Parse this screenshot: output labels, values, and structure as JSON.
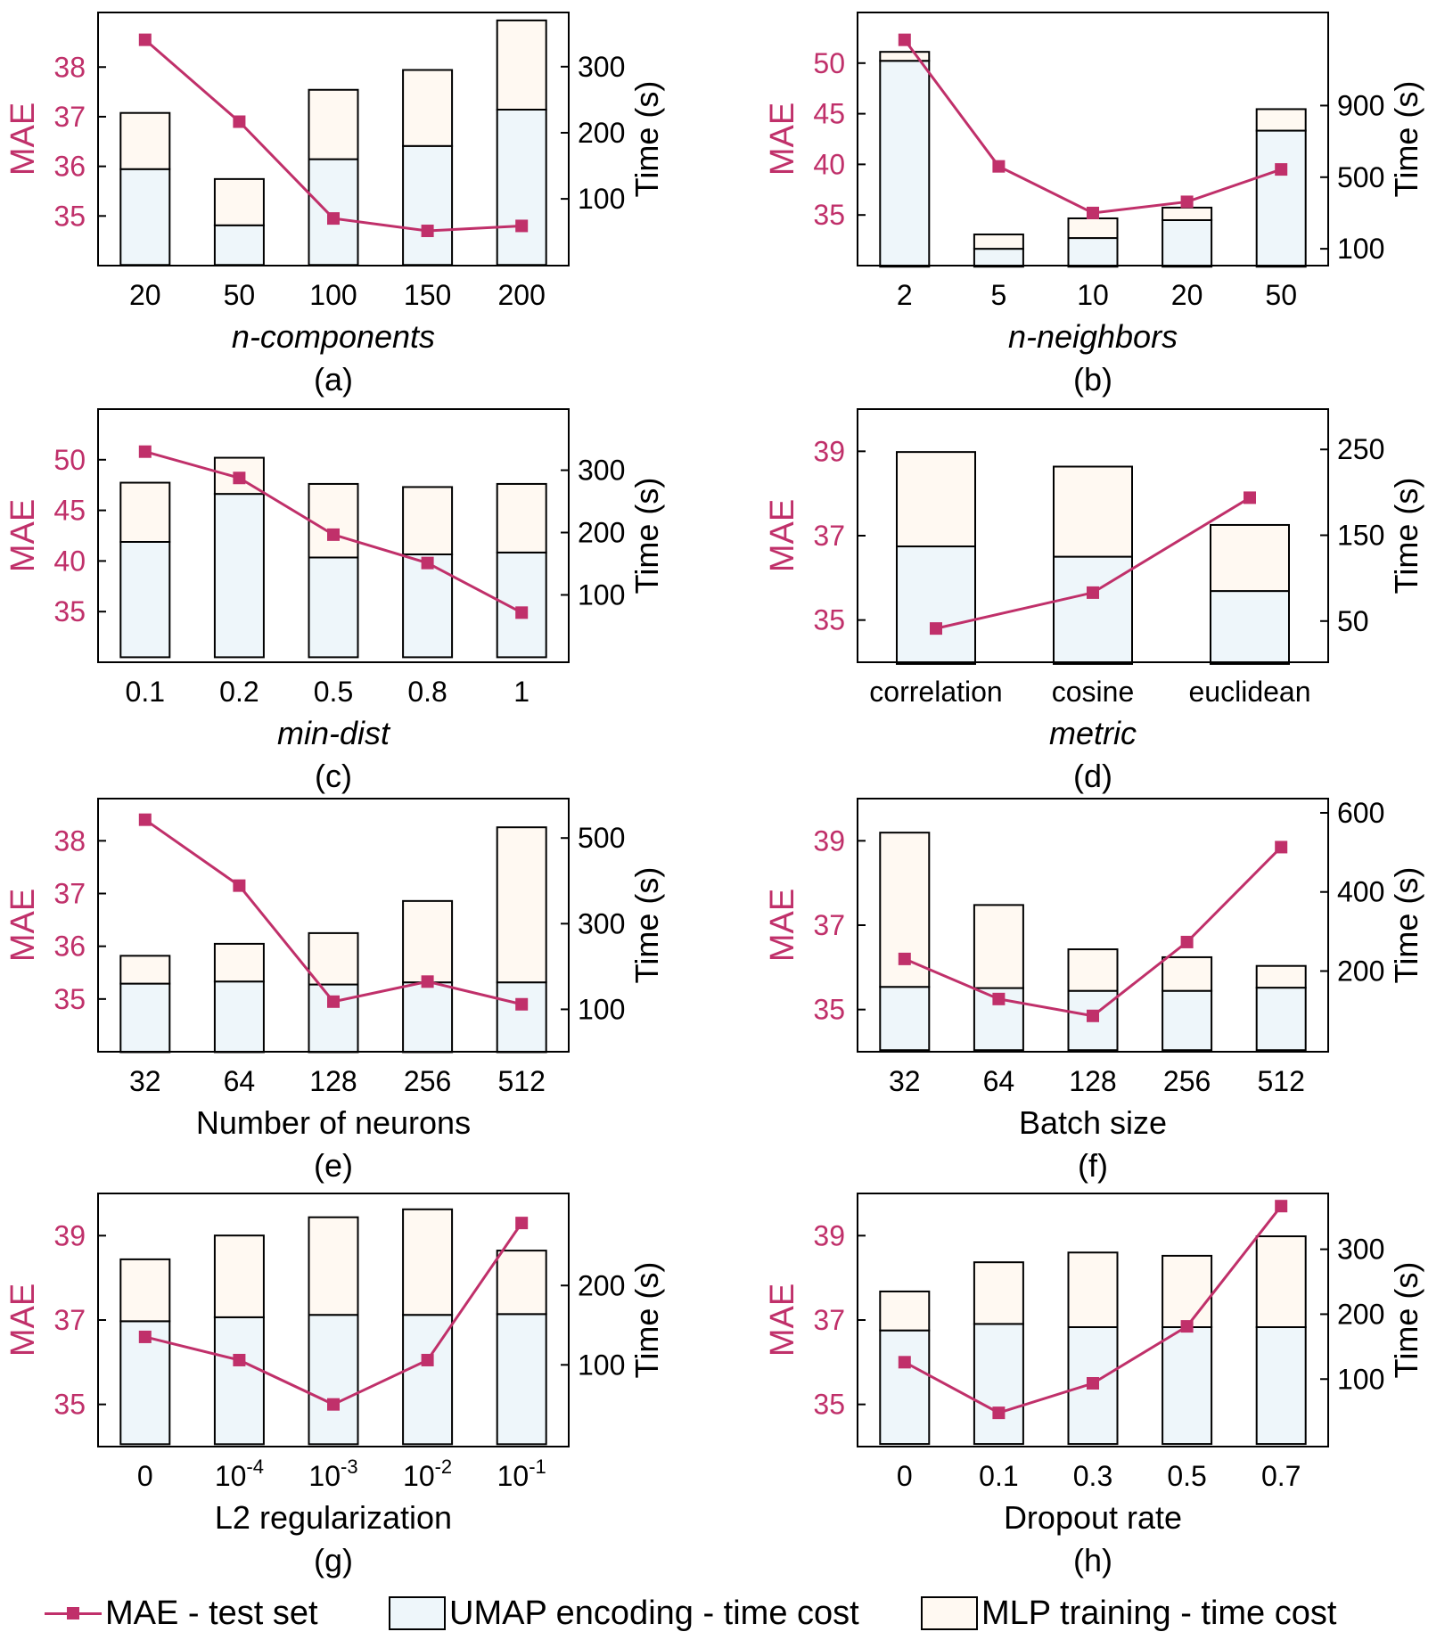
{
  "colors": {
    "mae": "#C0306A",
    "umap_fill": "#EEF6FA",
    "mlp_fill": "#FFF9F2",
    "axis": "#000000"
  },
  "legend": {
    "mae": "MAE - test set",
    "umap": "UMAP encoding - time cost",
    "mlp": "MLP training - time cost"
  },
  "chart_data": [
    {
      "type": "bar",
      "panel": "(a)",
      "xlabel": "n-components",
      "xlabel_italic": true,
      "ylabel_left": "MAE",
      "ylabel_right": "Time (s)",
      "categories": [
        "20",
        "50",
        "100",
        "150",
        "200"
      ],
      "ylim_left": [
        34.0,
        39.1
      ],
      "yticks_left": [
        "35",
        "36",
        "37",
        "38"
      ],
      "ylim_right": [
        -1,
        382
      ],
      "yticks_right": [
        "100",
        "200",
        "300"
      ],
      "series": [
        {
          "name": "MAE - test set",
          "axis": "left",
          "kind": "line",
          "values": [
            38.55,
            36.9,
            34.95,
            34.7,
            34.8
          ]
        },
        {
          "name": "UMAP encoding - time cost",
          "axis": "right",
          "kind": "stack",
          "values": [
            145,
            60,
            160,
            180,
            235
          ]
        },
        {
          "name": "MLP training - time cost",
          "axis": "right",
          "kind": "stack",
          "values": [
            85,
            70,
            105,
            115,
            135
          ]
        }
      ]
    },
    {
      "type": "bar",
      "panel": "(b)",
      "xlabel": "n-neighbors",
      "xlabel_italic": true,
      "ylabel_left": "MAE",
      "ylabel_right": "Time (s)",
      "categories": [
        "2",
        "5",
        "10",
        "20",
        "50"
      ],
      "ylim_left": [
        30.0,
        55.0
      ],
      "yticks_left": [
        "35",
        "40",
        "45",
        "50"
      ],
      "ylim_right": [
        6,
        1420
      ],
      "yticks_right": [
        "100",
        "500",
        "900"
      ],
      "series": [
        {
          "name": "MAE - test set",
          "axis": "left",
          "kind": "line",
          "values": [
            52.3,
            39.8,
            35.2,
            36.3,
            39.5
          ]
        },
        {
          "name": "UMAP encoding - time cost",
          "axis": "right",
          "kind": "stack",
          "values": [
            1150,
            100,
            160,
            260,
            760
          ]
        },
        {
          "name": "MLP training - time cost",
          "axis": "right",
          "kind": "stack",
          "values": [
            50,
            80,
            110,
            70,
            120
          ]
        }
      ]
    },
    {
      "type": "bar",
      "panel": "(c)",
      "xlabel": "min-dist",
      "xlabel_italic": true,
      "ylabel_left": "MAE",
      "ylabel_right": "Time (s)",
      "categories": [
        "0.1",
        "0.2",
        "0.5",
        "0.8",
        "1"
      ],
      "ylim_left": [
        30.0,
        55.0
      ],
      "yticks_left": [
        "35",
        "40",
        "45",
        "50"
      ],
      "ylim_right": [
        -8,
        398
      ],
      "yticks_right": [
        "100",
        "200",
        "300"
      ],
      "series": [
        {
          "name": "MAE - test set",
          "axis": "left",
          "kind": "line",
          "values": [
            50.8,
            48.2,
            42.6,
            39.8,
            34.9
          ]
        },
        {
          "name": "UMAP encoding - time cost",
          "axis": "right",
          "kind": "stack",
          "values": [
            185,
            262,
            160,
            165,
            168
          ]
        },
        {
          "name": "MLP training - time cost",
          "axis": "right",
          "kind": "stack",
          "values": [
            95,
            58,
            118,
            108,
            110
          ]
        }
      ]
    },
    {
      "type": "bar",
      "panel": "(d)",
      "xlabel": "metric",
      "xlabel_italic": true,
      "ylabel_left": "MAE",
      "ylabel_right": "Time (s)",
      "categories": [
        "correlation",
        "cosine",
        "euclidean"
      ],
      "ylim_left": [
        34.0,
        40.0
      ],
      "yticks_left": [
        "35",
        "37",
        "39"
      ],
      "ylim_right": [
        2,
        297
      ],
      "yticks_right": [
        "50",
        "150",
        "250"
      ],
      "series": [
        {
          "name": "MAE - test set",
          "axis": "left",
          "kind": "line",
          "values": [
            34.8,
            35.65,
            37.9
          ]
        },
        {
          "name": "UMAP encoding - time cost",
          "axis": "right",
          "kind": "stack",
          "values": [
            137,
            125,
            85
          ]
        },
        {
          "name": "MLP training - time cost",
          "axis": "right",
          "kind": "stack",
          "values": [
            110,
            105,
            77
          ]
        }
      ]
    },
    {
      "type": "bar",
      "panel": "(e)",
      "xlabel": "Number of neurons",
      "xlabel_italic": false,
      "ylabel_left": "MAE",
      "ylabel_right": "Time (s)",
      "categories": [
        "32",
        "64",
        "128",
        "256",
        "512"
      ],
      "ylim_left": [
        34.0,
        38.8
      ],
      "yticks_left": [
        "35",
        "36",
        "37",
        "38"
      ],
      "ylim_right": [
        1,
        592
      ],
      "yticks_right": [
        "100",
        "300",
        "500"
      ],
      "series": [
        {
          "name": "MAE - test set",
          "axis": "left",
          "kind": "line",
          "values": [
            38.4,
            37.15,
            34.95,
            35.33,
            34.9
          ]
        },
        {
          "name": "UMAP encoding - time cost",
          "axis": "right",
          "kind": "stack",
          "values": [
            160,
            165,
            158,
            163,
            163
          ]
        },
        {
          "name": "MLP training - time cost",
          "axis": "right",
          "kind": "stack",
          "values": [
            65,
            88,
            120,
            190,
            362
          ]
        }
      ]
    },
    {
      "type": "bar",
      "panel": "(f)",
      "xlabel": "Batch size",
      "xlabel_italic": false,
      "ylabel_left": "MAE",
      "ylabel_right": "Time (s)",
      "categories": [
        "32",
        "64",
        "128",
        "256",
        "512"
      ],
      "ylim_left": [
        34.0,
        40.0
      ],
      "yticks_left": [
        "35",
        "37",
        "39"
      ],
      "ylim_right": [
        -4,
        636
      ],
      "yticks_right": [
        "200",
        "400",
        "600"
      ],
      "series": [
        {
          "name": "MAE - test set",
          "axis": "left",
          "kind": "line",
          "values": [
            36.2,
            35.25,
            34.85,
            36.6,
            38.85
          ]
        },
        {
          "name": "UMAP encoding - time cost",
          "axis": "right",
          "kind": "stack",
          "values": [
            160,
            157,
            150,
            150,
            158
          ]
        },
        {
          "name": "MLP training - time cost",
          "axis": "right",
          "kind": "stack",
          "values": [
            390,
            210,
            105,
            85,
            55
          ]
        }
      ]
    },
    {
      "type": "bar",
      "panel": "(g)",
      "xlabel": "L2 regularization",
      "xlabel_italic": false,
      "ylabel_left": "MAE",
      "ylabel_right": "Time (s)",
      "categories": [
        "0",
        "10^-4",
        "10^-3",
        "10^-2",
        "10^-1"
      ],
      "ylim_left": [
        34.0,
        40.0
      ],
      "yticks_left": [
        "35",
        "37",
        "39"
      ],
      "ylim_right": [
        -3,
        316
      ],
      "yticks_right": [
        "100",
        "200"
      ],
      "series": [
        {
          "name": "MAE - test set",
          "axis": "left",
          "kind": "line",
          "values": [
            36.6,
            36.05,
            35.0,
            36.05,
            39.3
          ]
        },
        {
          "name": "UMAP encoding - time cost",
          "axis": "right",
          "kind": "stack",
          "values": [
            155,
            160,
            163,
            163,
            164
          ]
        },
        {
          "name": "MLP training - time cost",
          "axis": "right",
          "kind": "stack",
          "values": [
            78,
            103,
            123,
            133,
            80
          ]
        }
      ]
    },
    {
      "type": "bar",
      "panel": "(h)",
      "xlabel": "Dropout rate",
      "xlabel_italic": false,
      "ylabel_left": "MAE",
      "ylabel_right": "Time (s)",
      "categories": [
        "0",
        "0.1",
        "0.3",
        "0.5",
        "0.7"
      ],
      "ylim_left": [
        34.0,
        40.0
      ],
      "yticks_left": [
        "35",
        "37",
        "39"
      ],
      "ylim_right": [
        -4,
        386
      ],
      "yticks_right": [
        "100",
        "200",
        "300"
      ],
      "series": [
        {
          "name": "MAE - test set",
          "axis": "left",
          "kind": "line",
          "values": [
            36.0,
            34.8,
            35.5,
            36.85,
            39.7
          ]
        },
        {
          "name": "UMAP encoding - time cost",
          "axis": "right",
          "kind": "stack",
          "values": [
            175,
            185,
            180,
            180,
            180
          ]
        },
        {
          "name": "MLP training - time cost",
          "axis": "right",
          "kind": "stack",
          "values": [
            60,
            95,
            115,
            110,
            140
          ]
        }
      ]
    }
  ]
}
